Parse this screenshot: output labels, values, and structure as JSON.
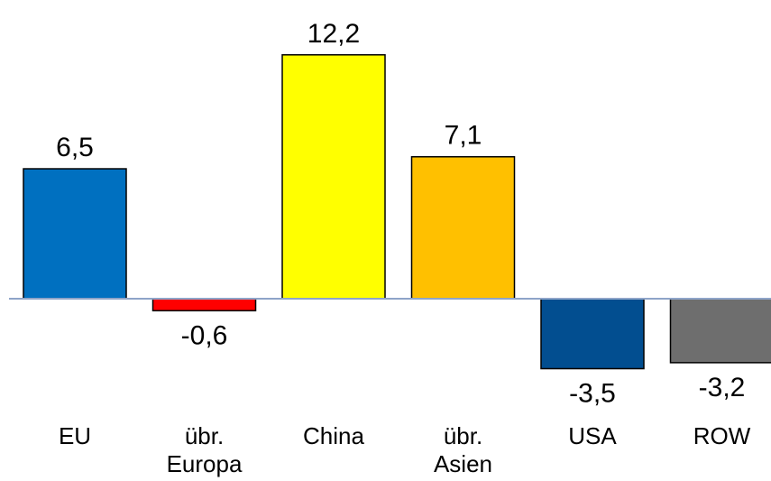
{
  "chart_data": {
    "type": "bar",
    "categories": [
      "EU",
      "übr. Europa",
      "China",
      "übr. Asien",
      "USA",
      "ROW"
    ],
    "category_lines": [
      [
        "EU"
      ],
      [
        "übr.",
        "Europa"
      ],
      [
        "China"
      ],
      [
        "übr.",
        "Asien"
      ],
      [
        "USA"
      ],
      [
        "ROW"
      ]
    ],
    "values": [
      6.5,
      -0.6,
      12.2,
      7.1,
      -3.5,
      -3.2
    ],
    "value_labels": [
      "6,5",
      "-0,6",
      "12,2",
      "7,1",
      "-3,5",
      "-3,2"
    ],
    "colors": [
      "#0070C0",
      "#FF0000",
      "#FFFF00",
      "#FFC000",
      "#024E90",
      "#6E6E6E"
    ],
    "baseline_color": "#8EA4C8",
    "title": "",
    "xlabel": "",
    "ylabel": "",
    "grid": false,
    "legend": "none"
  }
}
